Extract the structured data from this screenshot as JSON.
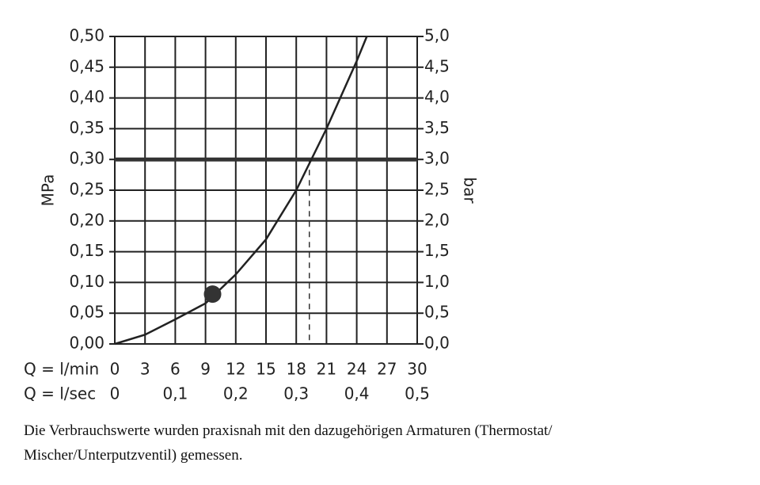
{
  "chart_data": {
    "type": "line",
    "ylabel": "MPa",
    "y2label": "bar",
    "xlabel": "Q = l/min",
    "x2label": "Q = l/sec",
    "x": [
      0,
      3,
      6,
      9,
      12,
      15,
      18,
      21,
      24,
      25
    ],
    "series": [
      {
        "color": "#222222",
        "values": [
          0,
          0.015,
          0.04,
          0.066,
          0.113,
          0.17,
          0.25,
          0.35,
          0.46,
          0.5
        ]
      }
    ],
    "marker": {
      "x": 9.7,
      "y": 0.081,
      "color": "#333333"
    },
    "reference_line": {
      "y": 0.3,
      "color": "#333333"
    },
    "operating_point": {
      "x": 19.3,
      "y": 0.3
    },
    "xlim": [
      0,
      30
    ],
    "xticks": [
      0,
      3,
      6,
      9,
      12,
      15,
      18,
      21,
      24,
      27,
      30
    ],
    "x2lim": [
      0,
      0.5
    ],
    "x2ticks": [
      0,
      {
        "value": 0.1,
        "label": "0,1"
      },
      {
        "value": 0.2,
        "label": "0,2"
      },
      {
        "value": 0.3,
        "label": "0,3"
      },
      {
        "value": 0.4,
        "label": "0,4"
      },
      {
        "value": 0.5,
        "label": "0,5"
      }
    ],
    "ylim": [
      0,
      0.5
    ],
    "yticks": [
      {
        "value": 0,
        "label": "0,00"
      },
      {
        "value": 0.05,
        "label": "0,05"
      },
      {
        "value": 0.1,
        "label": "0,10"
      },
      {
        "value": 0.15,
        "label": "0,15"
      },
      {
        "value": 0.2,
        "label": "0,20"
      },
      {
        "value": 0.25,
        "label": "0,25"
      },
      {
        "value": 0.3,
        "label": "0,30"
      },
      {
        "value": 0.35,
        "label": "0,35"
      },
      {
        "value": 0.4,
        "label": "0,40"
      },
      {
        "value": 0.45,
        "label": "0,45"
      },
      {
        "value": 0.5,
        "label": "0,50"
      }
    ],
    "y2lim": [
      0,
      5
    ],
    "y2ticks": [
      {
        "value": 0,
        "label": "0,0"
      },
      {
        "value": 0.5,
        "label": "0,5"
      },
      {
        "value": 1,
        "label": "1,0"
      },
      {
        "value": 1.5,
        "label": "1,5"
      },
      {
        "value": 2,
        "label": "2,0"
      },
      {
        "value": 2.5,
        "label": "2,5"
      },
      {
        "value": 3,
        "label": "3,0"
      },
      {
        "value": 3.5,
        "label": "3,5"
      },
      {
        "value": 4,
        "label": "4,0"
      },
      {
        "value": 4.5,
        "label": "4,5"
      },
      {
        "value": 5,
        "label": "5,0"
      }
    ],
    "grid": true
  },
  "caption": [
    "Die Verbrauchswerte wurden praxisnah mit den dazugehörigen Armaturen (Thermostat/",
    "Mischer/Unterputzventil) gemessen."
  ]
}
